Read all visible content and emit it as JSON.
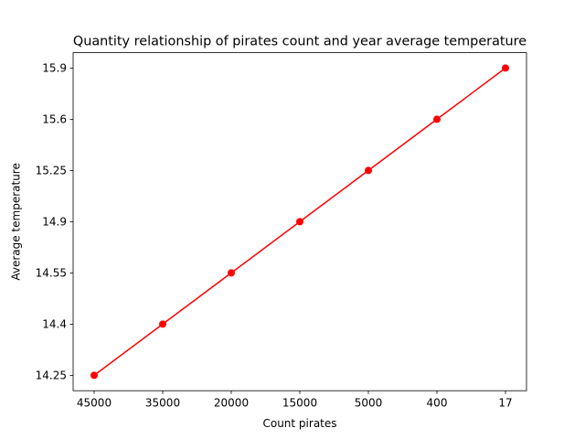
{
  "chart_data": {
    "type": "line",
    "title": "Quantity relationship of pirates count and year average temperature",
    "xlabel": "Count pirates",
    "ylabel": "Average temperature",
    "categories": [
      "45000",
      "35000",
      "20000",
      "15000",
      "5000",
      "400",
      "17"
    ],
    "y_tick_labels": [
      "14.25",
      "14.4",
      "14.55",
      "14.9",
      "15.25",
      "15.6",
      "15.9"
    ],
    "series": [
      {
        "values": [
          14.25,
          14.4,
          14.55,
          14.9,
          15.25,
          15.6,
          15.9
        ],
        "color": "#ff0000",
        "marker": "circle"
      }
    ],
    "y_axis_scale": "categorical (labels evenly spaced)",
    "grid": false,
    "legend": "none"
  }
}
